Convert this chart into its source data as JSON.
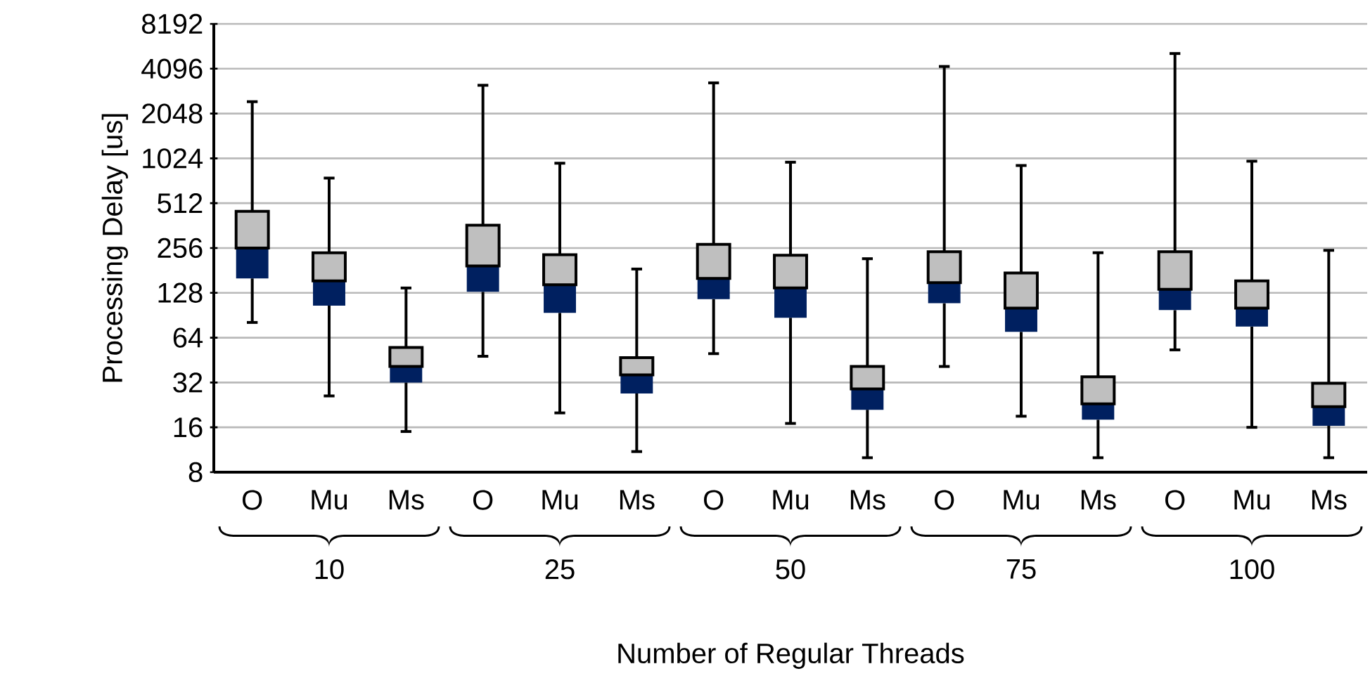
{
  "chart_data": {
    "type": "box",
    "categories": [
      "O",
      "Mu",
      "Ms",
      "O",
      "Mu",
      "Ms",
      "O",
      "Mu",
      "Ms",
      "O",
      "Mu",
      "Ms",
      "O",
      "Mu",
      "Ms"
    ],
    "boxes": [
      {
        "low": 81,
        "q1": 160,
        "median": 256,
        "q3": 452,
        "high": 2460
      },
      {
        "low": 26,
        "q1": 105,
        "median": 154,
        "q3": 238,
        "high": 755
      },
      {
        "low": 15,
        "q1": 32,
        "median": 41,
        "q3": 55,
        "high": 138
      },
      {
        "low": 48,
        "q1": 130,
        "median": 194,
        "q3": 364,
        "high": 3170
      },
      {
        "low": 20,
        "q1": 94,
        "median": 145,
        "q3": 231,
        "high": 950
      },
      {
        "low": 11,
        "q1": 27,
        "median": 36,
        "q3": 47,
        "high": 185
      },
      {
        "low": 50,
        "q1": 116,
        "median": 160,
        "q3": 271,
        "high": 3290
      },
      {
        "low": 17,
        "q1": 87,
        "median": 138,
        "q3": 229,
        "high": 965
      },
      {
        "low": 10,
        "q1": 21,
        "median": 29,
        "q3": 41,
        "high": 217
      },
      {
        "low": 41,
        "q1": 109,
        "median": 150,
        "q3": 242,
        "high": 4240
      },
      {
        "low": 19,
        "q1": 70,
        "median": 101,
        "q3": 174,
        "high": 917
      },
      {
        "low": 10,
        "q1": 18,
        "median": 23,
        "q3": 35,
        "high": 238
      },
      {
        "low": 53,
        "q1": 98,
        "median": 135,
        "q3": 242,
        "high": 5180
      },
      {
        "low": 16,
        "q1": 76,
        "median": 101,
        "q3": 154,
        "high": 980
      },
      {
        "low": 10,
        "q1": 16.4,
        "median": 22,
        "q3": 31.6,
        "high": 247
      }
    ],
    "color": "#002060",
    "ylabel": "Processing Delay [us]",
    "xlabel": "Number of Regular Threads",
    "annotations": [
      "10",
      "25",
      "50",
      "75",
      "100"
    ],
    "log": "y",
    "ylim": [
      8,
      8192
    ],
    "yticks": [
      8,
      16,
      32,
      64,
      128,
      256,
      512,
      1024,
      2048,
      4096,
      8192
    ],
    "grid": "y"
  }
}
